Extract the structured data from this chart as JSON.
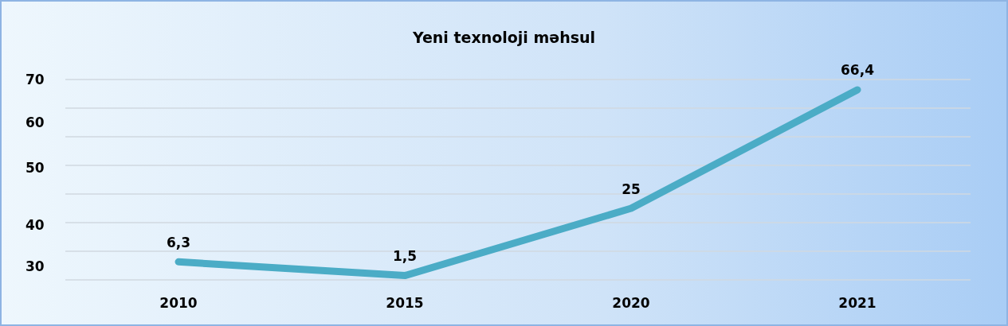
{
  "chart_data": {
    "type": "line",
    "title": "Yeni texnoloji məhsul",
    "categories": [
      "2010",
      "2015",
      "2020",
      "2021"
    ],
    "series": [
      {
        "color": "#4bacc6",
        "values": [
          6.3,
          1.5,
          25,
          66.4
        ],
        "value_labels": [
          "6,3",
          "1,5",
          "25",
          "66,4"
        ]
      }
    ],
    "annotations": [
      "70",
      "60",
      "50",
      "40",
      "30"
    ],
    "grid": "y",
    "marker": "none",
    "line_style": "solid"
  }
}
